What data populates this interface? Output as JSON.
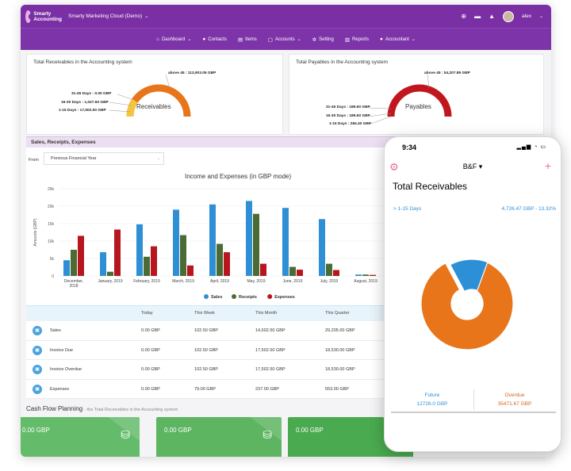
{
  "app": {
    "logo_line1": "Smarty",
    "logo_line2": "Accounting",
    "org_title": "Smarty Marketing Cloud (Demo)",
    "user": "alex"
  },
  "nav": [
    {
      "label": "Dashboard",
      "icon": "home-icon",
      "caret": true
    },
    {
      "label": "Contacts",
      "icon": "person-icon",
      "caret": false
    },
    {
      "label": "Items",
      "icon": "items-icon",
      "caret": false
    },
    {
      "label": "Accounts",
      "icon": "accounts-icon",
      "caret": true
    },
    {
      "label": "Setting",
      "icon": "gear-icon",
      "caret": false
    },
    {
      "label": "Reports",
      "icon": "reports-icon",
      "caret": false
    },
    {
      "label": "Accountant",
      "icon": "accountant-icon",
      "caret": true
    }
  ],
  "receivables": {
    "title": "Total Receivables in the Accounting system",
    "center_label": "Receivables",
    "labels": [
      "above 45 : 113,903.05 GBP",
      "31-45 Days : 0.00 GBP",
      "16-30 Days : 1,027.50 GBP",
      "1-15 Days : 17,502.50 GBP"
    ]
  },
  "payables": {
    "title": "Total Payables in the Accounting system",
    "center_label": "Payables",
    "labels": [
      "above 45 : 54,207.89 GBP",
      "31-45 Days : 189.60 GBP",
      "16-30 Days : 189.60 GBP",
      "1-15 Days : 284.40 GBP"
    ]
  },
  "section": {
    "title": "Sales, Receipts, Expenses",
    "from_label": "From",
    "from_value": "Previous Financial Year"
  },
  "chart_data": {
    "type": "bar",
    "title": "Income and Expenses (in GBP mode)",
    "ylabel": "Amounts (GBP)",
    "xlabel": "",
    "ylim": [
      0,
      25000
    ],
    "yticks": [
      "0",
      "5k",
      "10k",
      "15k",
      "20k",
      "25k"
    ],
    "categories": [
      "December, 2018",
      "January, 2019",
      "February, 2019",
      "March, 2019",
      "April, 2019",
      "May, 2019",
      "June, 2019",
      "July, 2019",
      "August, 2019",
      "September, 2019"
    ],
    "series": [
      {
        "name": "Sales",
        "color": "#2f8fd5",
        "values": [
          4500,
          6800,
          14800,
          19000,
          20500,
          21500,
          19500,
          16300,
          400,
          400
        ]
      },
      {
        "name": "Receipts",
        "color": "#4b6b34",
        "values": [
          7500,
          1200,
          5500,
          11700,
          9200,
          17800,
          2600,
          3500,
          400,
          400
        ]
      },
      {
        "name": "Expenses",
        "color": "#b8161e",
        "values": [
          11500,
          13300,
          8500,
          3000,
          6800,
          3500,
          1800,
          1700,
          300,
          300
        ]
      }
    ]
  },
  "table": {
    "headers": [
      "Today",
      "This Week",
      "This Month",
      "This Quarter"
    ],
    "rows": [
      {
        "label": "Sales",
        "values": [
          "0.00 GBP",
          "102.50 GBP",
          "14,602.50 GBP",
          "29,205.00 GBP"
        ]
      },
      {
        "label": "Invoice Due",
        "values": [
          "0.00 GBP",
          "102.50 GBP",
          "17,502.50 GBP",
          "18,530.00 GBP"
        ]
      },
      {
        "label": "Invoice Overdue",
        "values": [
          "0.00 GBP",
          "102.50 GBP",
          "17,502.50 GBP",
          "18,530.00 GBP"
        ]
      },
      {
        "label": "Expenses",
        "values": [
          "0.00 GBP",
          "79.00 GBP",
          "237.00 GBP",
          "553.00 GBP"
        ]
      }
    ]
  },
  "cash_flow": {
    "title": "Cash Flow Planning",
    "subtitle": "- the Total Receivables in the Accounting system",
    "cards": [
      {
        "value": "0.00 GBP"
      },
      {
        "value": "0.00 GBP"
      },
      {
        "value": "0.00 GBP"
      }
    ]
  },
  "phone": {
    "time": "9:34",
    "org": "B&F ▾",
    "title": "Total Receivables",
    "row_label": "> 1-15 Days",
    "row_value": "4,726.47 GBP - 13.32%",
    "donut": [
      {
        "name": "above 45",
        "value": 86.3,
        "color": "#e8751a"
      },
      {
        "name": "1-15 Days",
        "value": 13.32,
        "color": "#2d8fd5"
      }
    ],
    "future_label": "Future",
    "future_value": "12726.0 GBP",
    "overdue_label": "Overdue",
    "overdue_value": "35471.67 GBP",
    "future_color": "#2d8fd5",
    "overdue_color": "#d4641d"
  }
}
